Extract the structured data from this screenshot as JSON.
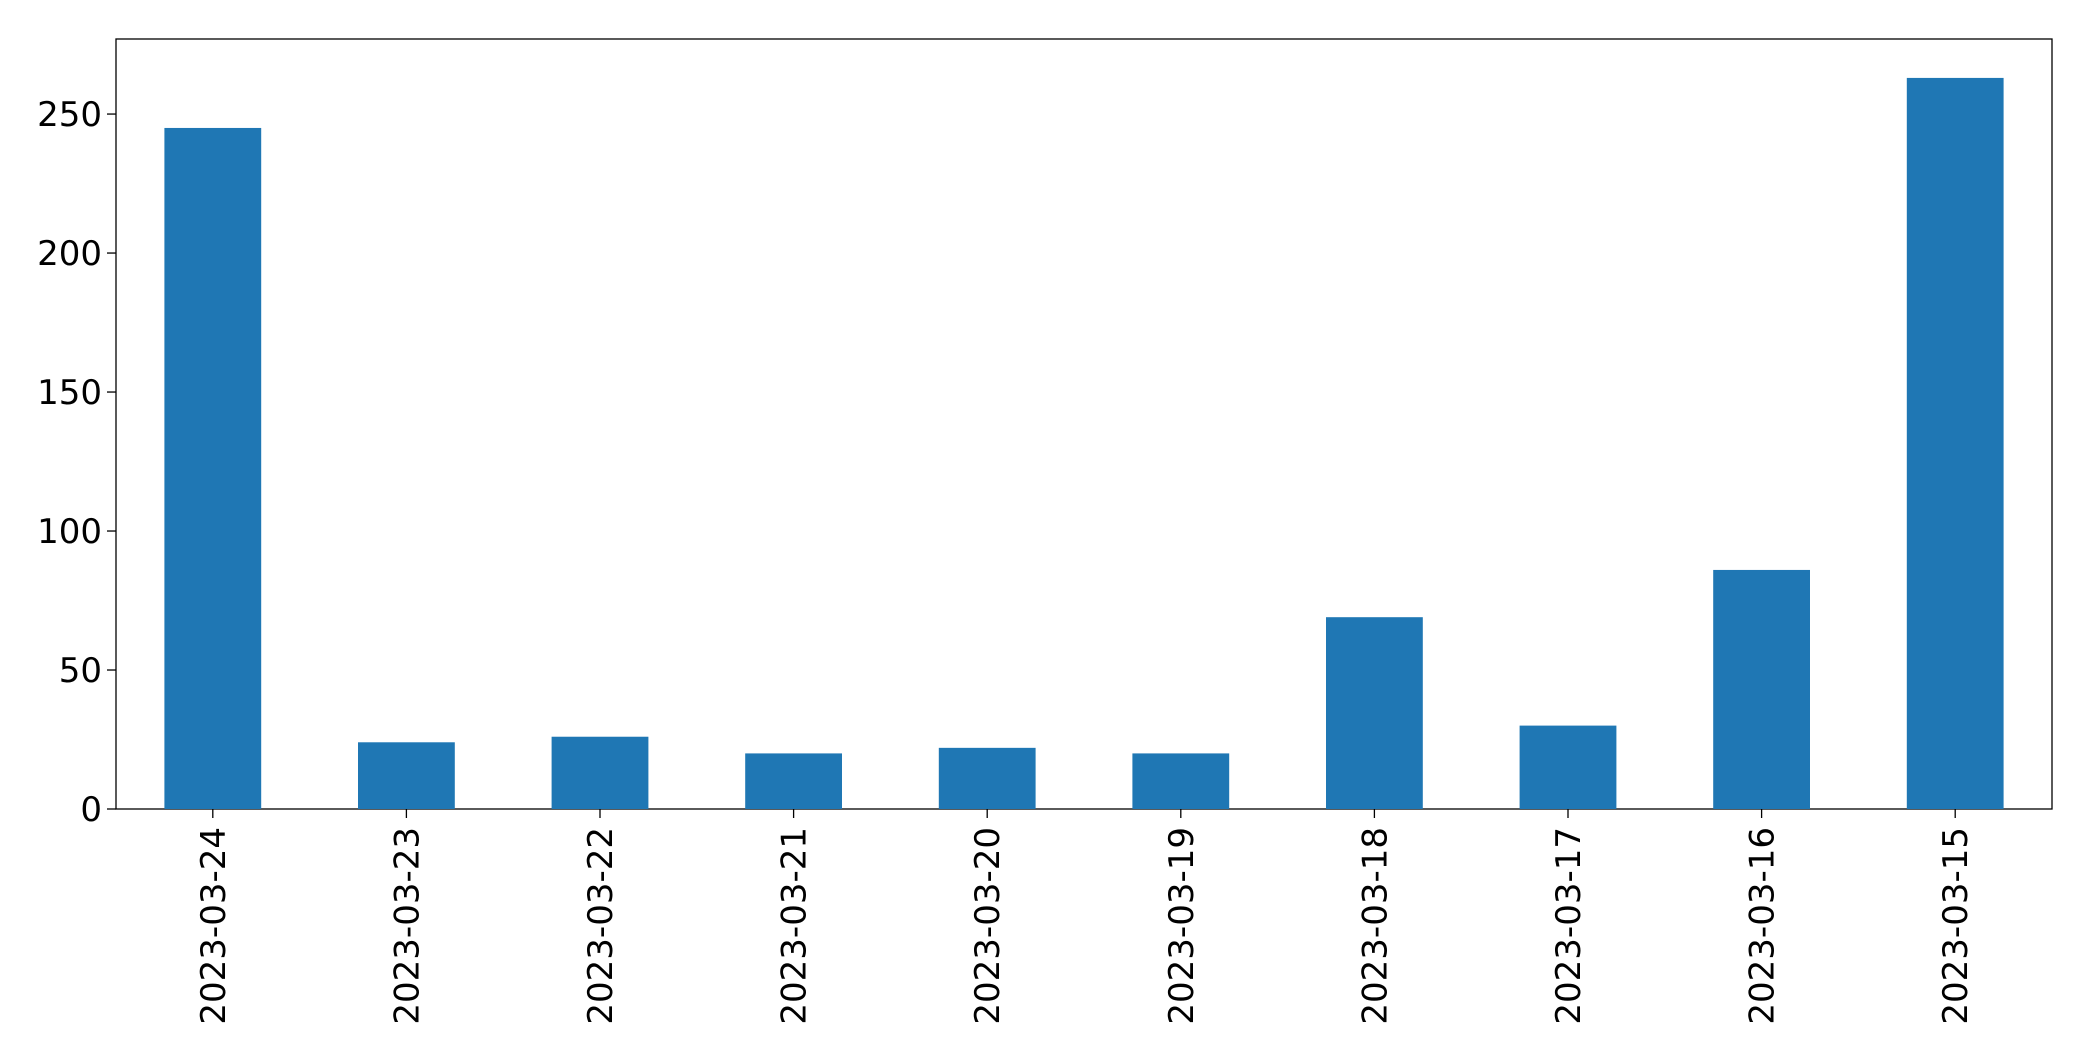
{
  "chart_data": {
    "type": "bar",
    "categories": [
      "2023-03-24",
      "2023-03-23",
      "2023-03-22",
      "2023-03-21",
      "2023-03-20",
      "2023-03-19",
      "2023-03-18",
      "2023-03-17",
      "2023-03-16",
      "2023-03-15"
    ],
    "values": [
      245,
      24,
      26,
      20,
      22,
      20,
      69,
      30,
      86,
      263
    ],
    "color": "#1f77b4",
    "ylim": [
      0,
      277
    ],
    "yticks": [
      0,
      50,
      100,
      150,
      200,
      250
    ],
    "grid": false
  }
}
